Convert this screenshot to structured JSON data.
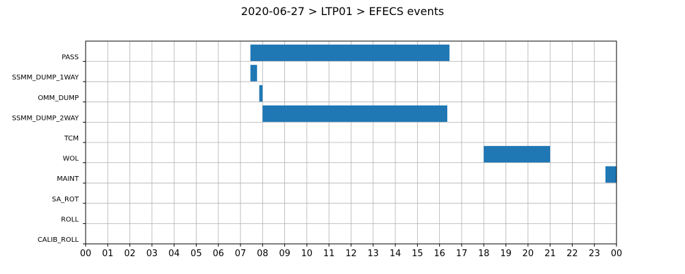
{
  "chart_data": {
    "type": "gantt",
    "title": "2020-06-27 > LTP01 > EFECS events",
    "x_tick_labels": [
      "00",
      "01",
      "02",
      "03",
      "04",
      "05",
      "06",
      "07",
      "08",
      "09",
      "10",
      "11",
      "12",
      "13",
      "14",
      "15",
      "16",
      "17",
      "18",
      "19",
      "20",
      "21",
      "22",
      "23",
      "00"
    ],
    "xlim": [
      0,
      24
    ],
    "categories": [
      "PASS",
      "SSMM_DUMP_1WAY",
      "OMM_DUMP",
      "SSMM_DUMP_2WAY",
      "TCM",
      "WOL",
      "MAINT",
      "SA_ROT",
      "ROLL",
      "CALIB_ROLL"
    ],
    "bar_color": "#1f77b4",
    "grid": true,
    "events": [
      {
        "category": "PASS",
        "start": 7.45,
        "end": 16.45
      },
      {
        "category": "SSMM_DUMP_1WAY",
        "start": 7.45,
        "end": 7.75
      },
      {
        "category": "OMM_DUMP",
        "start": 7.85,
        "end": 8.0
      },
      {
        "category": "SSMM_DUMP_2WAY",
        "start": 8.0,
        "end": 16.35
      },
      {
        "category": "WOL",
        "start": 18.0,
        "end": 21.0
      },
      {
        "category": "MAINT",
        "start": 23.5,
        "end": 24.0
      }
    ]
  }
}
